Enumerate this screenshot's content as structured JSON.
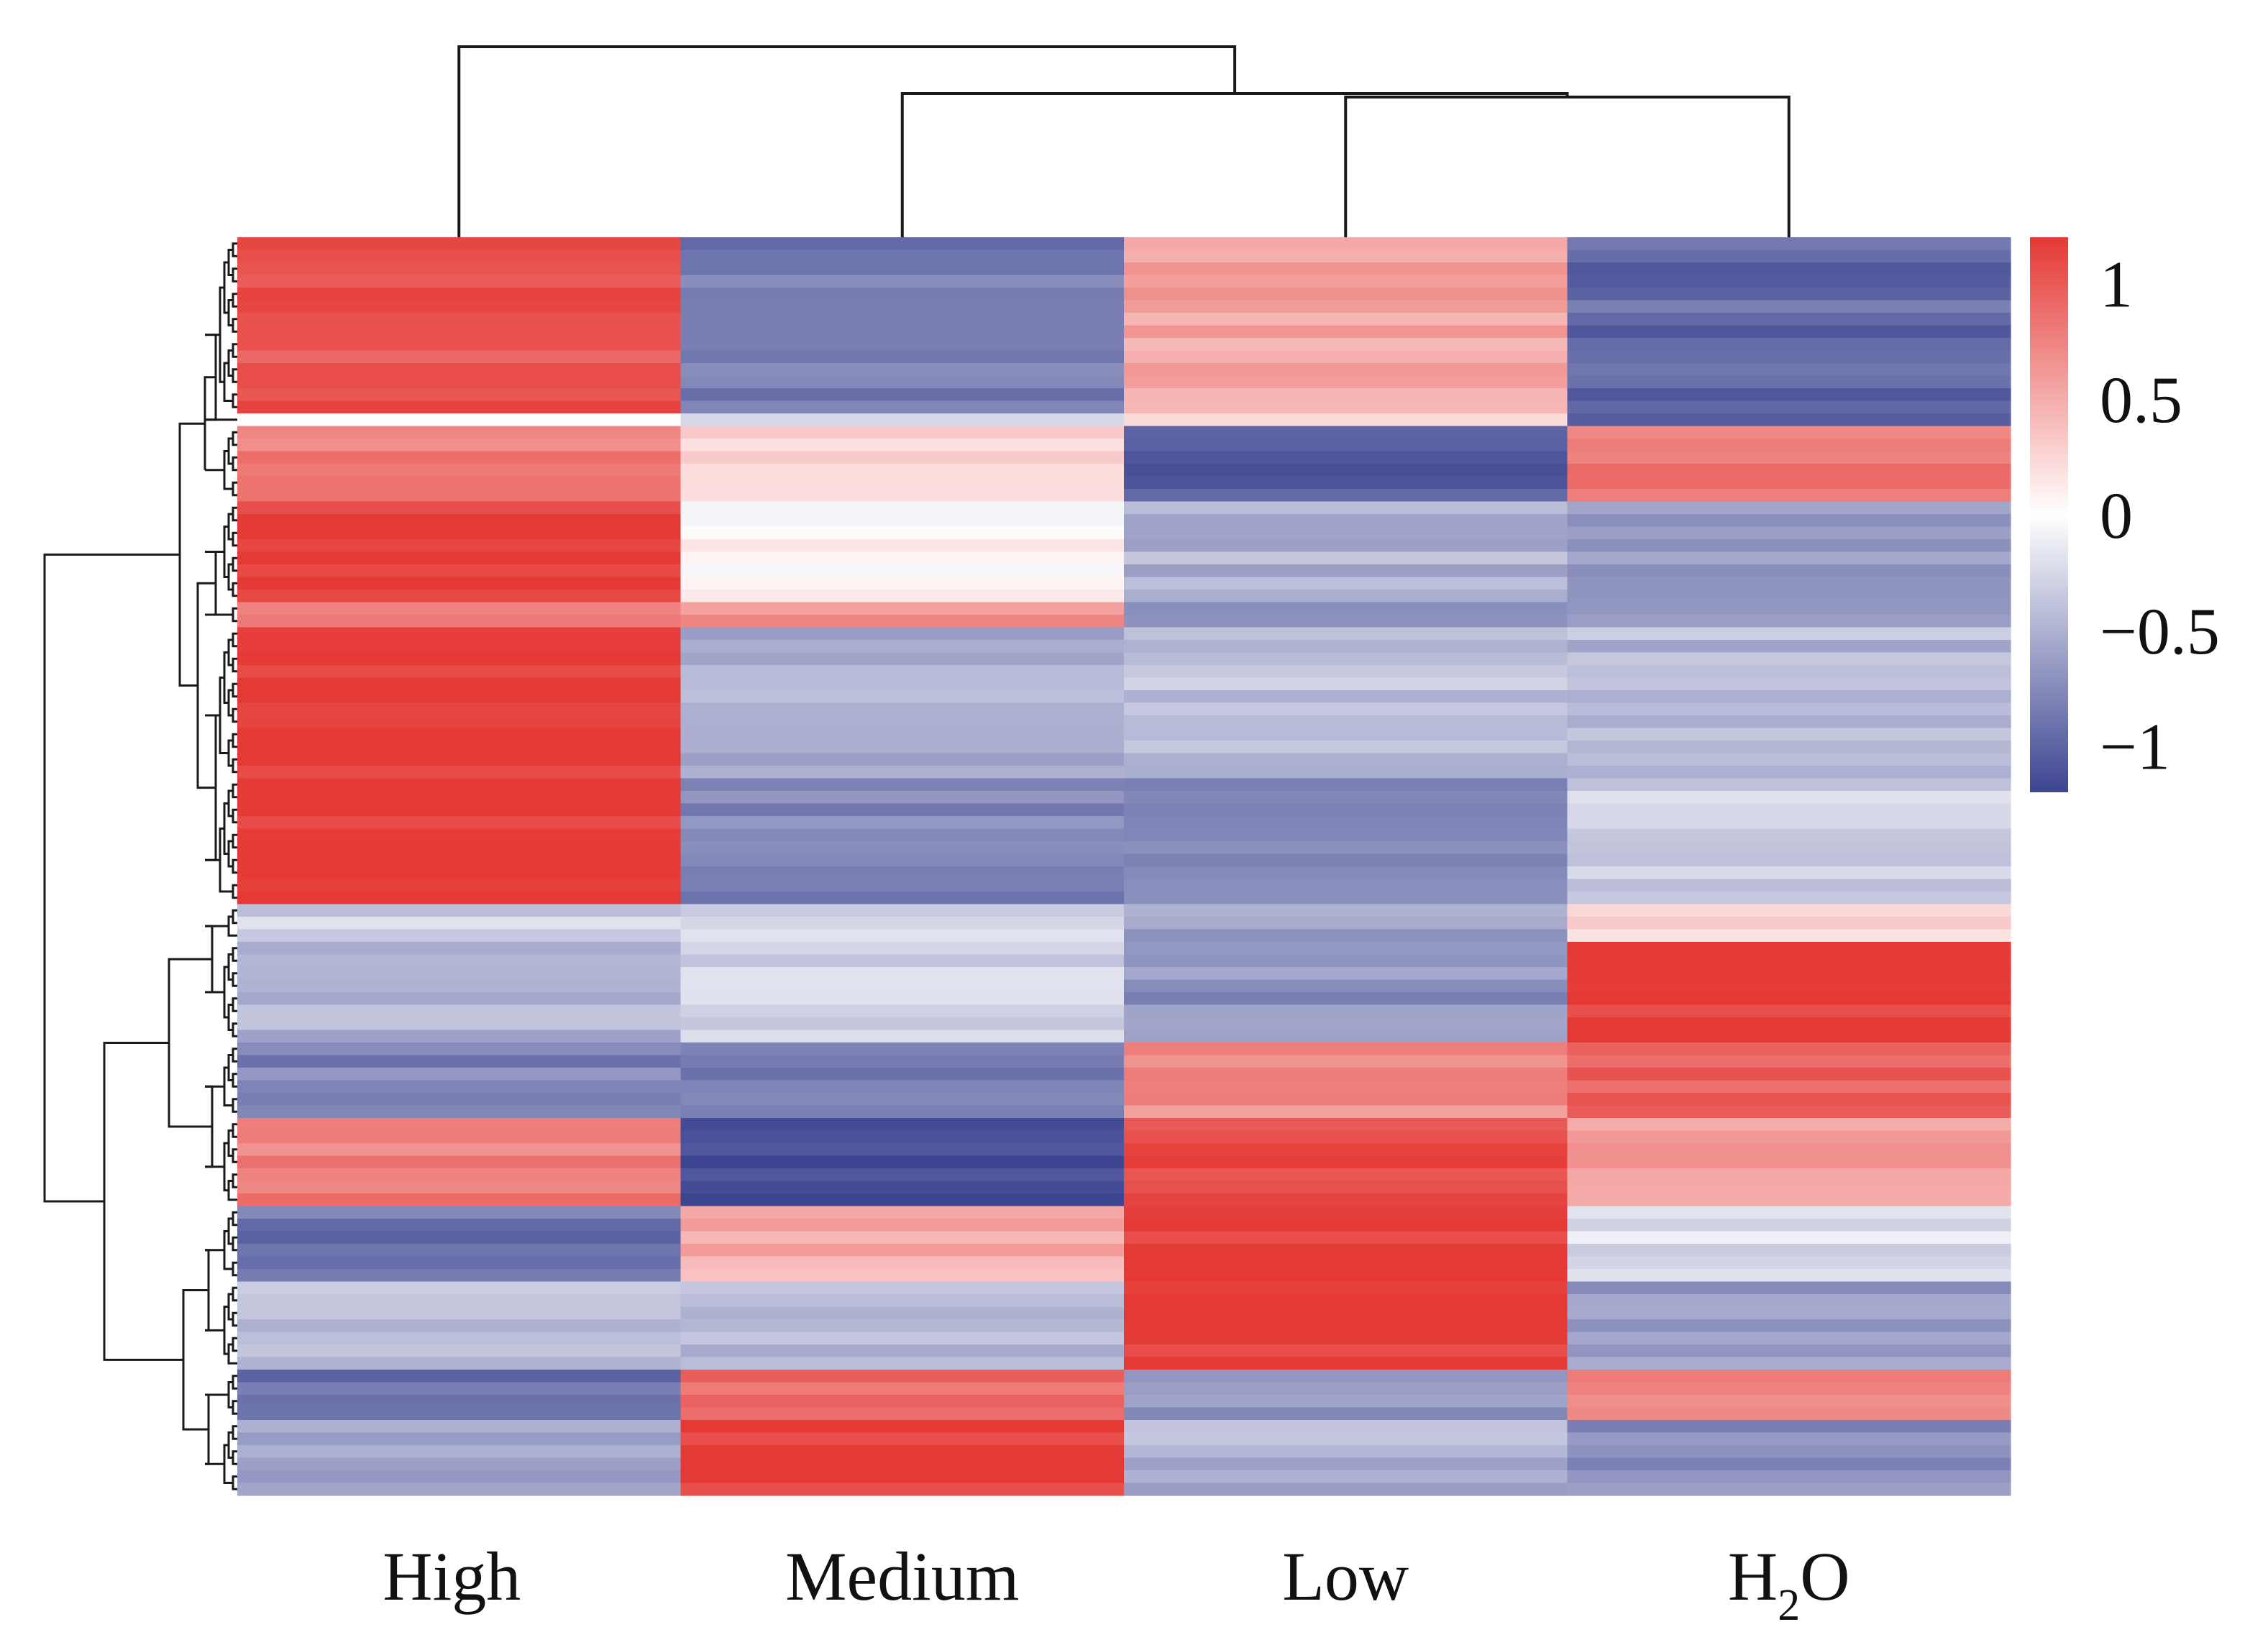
{
  "chart_data": {
    "type": "heatmap",
    "title": "",
    "xlabel": "",
    "ylabel": "",
    "columns": [
      "High",
      "Medium",
      "Low",
      "H2O"
    ],
    "column_labels": [
      {
        "text": "High",
        "sub": ""
      },
      {
        "text": "Medium",
        "sub": ""
      },
      {
        "text": "Low",
        "sub": ""
      },
      {
        "text": "H",
        "sub": "2",
        "after": "O"
      }
    ],
    "row_count": 100,
    "value_range": [
      -1.2,
      1.2
    ],
    "colorbar": {
      "ticks": [
        1,
        0.5,
        0,
        -0.5,
        -1
      ],
      "tick_labels": [
        "1",
        "0.5",
        "0",
        "−0.5",
        "−1"
      ],
      "colors": {
        "high": "#e53935",
        "mid": "#ffffff",
        "low": "#3d4591"
      }
    },
    "column_dendrogram": "((High),(Medium,(Low,H2O)))",
    "row_dendrogram": true,
    "value_blocks": [
      {
        "rows": 14,
        "values": [
          1.05,
          -0.85,
          0.55,
          -0.95
        ]
      },
      {
        "rows": 1,
        "values": [
          0.05,
          -0.3,
          0.3,
          -1.0
        ]
      },
      {
        "rows": 6,
        "values": [
          0.75,
          0.2,
          -1.0,
          0.8
        ]
      },
      {
        "rows": 8,
        "values": [
          1.2,
          0.05,
          -0.5,
          -0.7
        ]
      },
      {
        "rows": 2,
        "values": [
          0.8,
          0.7,
          -0.8,
          -0.6
        ]
      },
      {
        "rows": 12,
        "values": [
          1.2,
          -0.5,
          -0.4,
          -0.45
        ]
      },
      {
        "rows": 10,
        "values": [
          1.2,
          -0.8,
          -0.75,
          -0.3
        ]
      },
      {
        "rows": 3,
        "values": [
          -0.3,
          -0.3,
          -0.6,
          0.3
        ]
      },
      {
        "rows": 8,
        "values": [
          -0.5,
          -0.3,
          -0.7,
          1.2
        ]
      },
      {
        "rows": 6,
        "values": [
          -0.8,
          -0.85,
          0.7,
          0.95
        ]
      },
      {
        "rows": 7,
        "values": [
          0.8,
          -1.2,
          1.05,
          0.6
        ]
      },
      {
        "rows": 6,
        "values": [
          -0.9,
          0.5,
          1.2,
          -0.2
        ]
      },
      {
        "rows": 7,
        "values": [
          -0.4,
          -0.5,
          1.2,
          -0.65
        ]
      },
      {
        "rows": 4,
        "values": [
          -0.95,
          0.9,
          -0.65,
          0.8
        ]
      },
      {
        "rows": 6,
        "values": [
          -0.6,
          1.2,
          -0.5,
          -0.7
        ]
      }
    ]
  }
}
